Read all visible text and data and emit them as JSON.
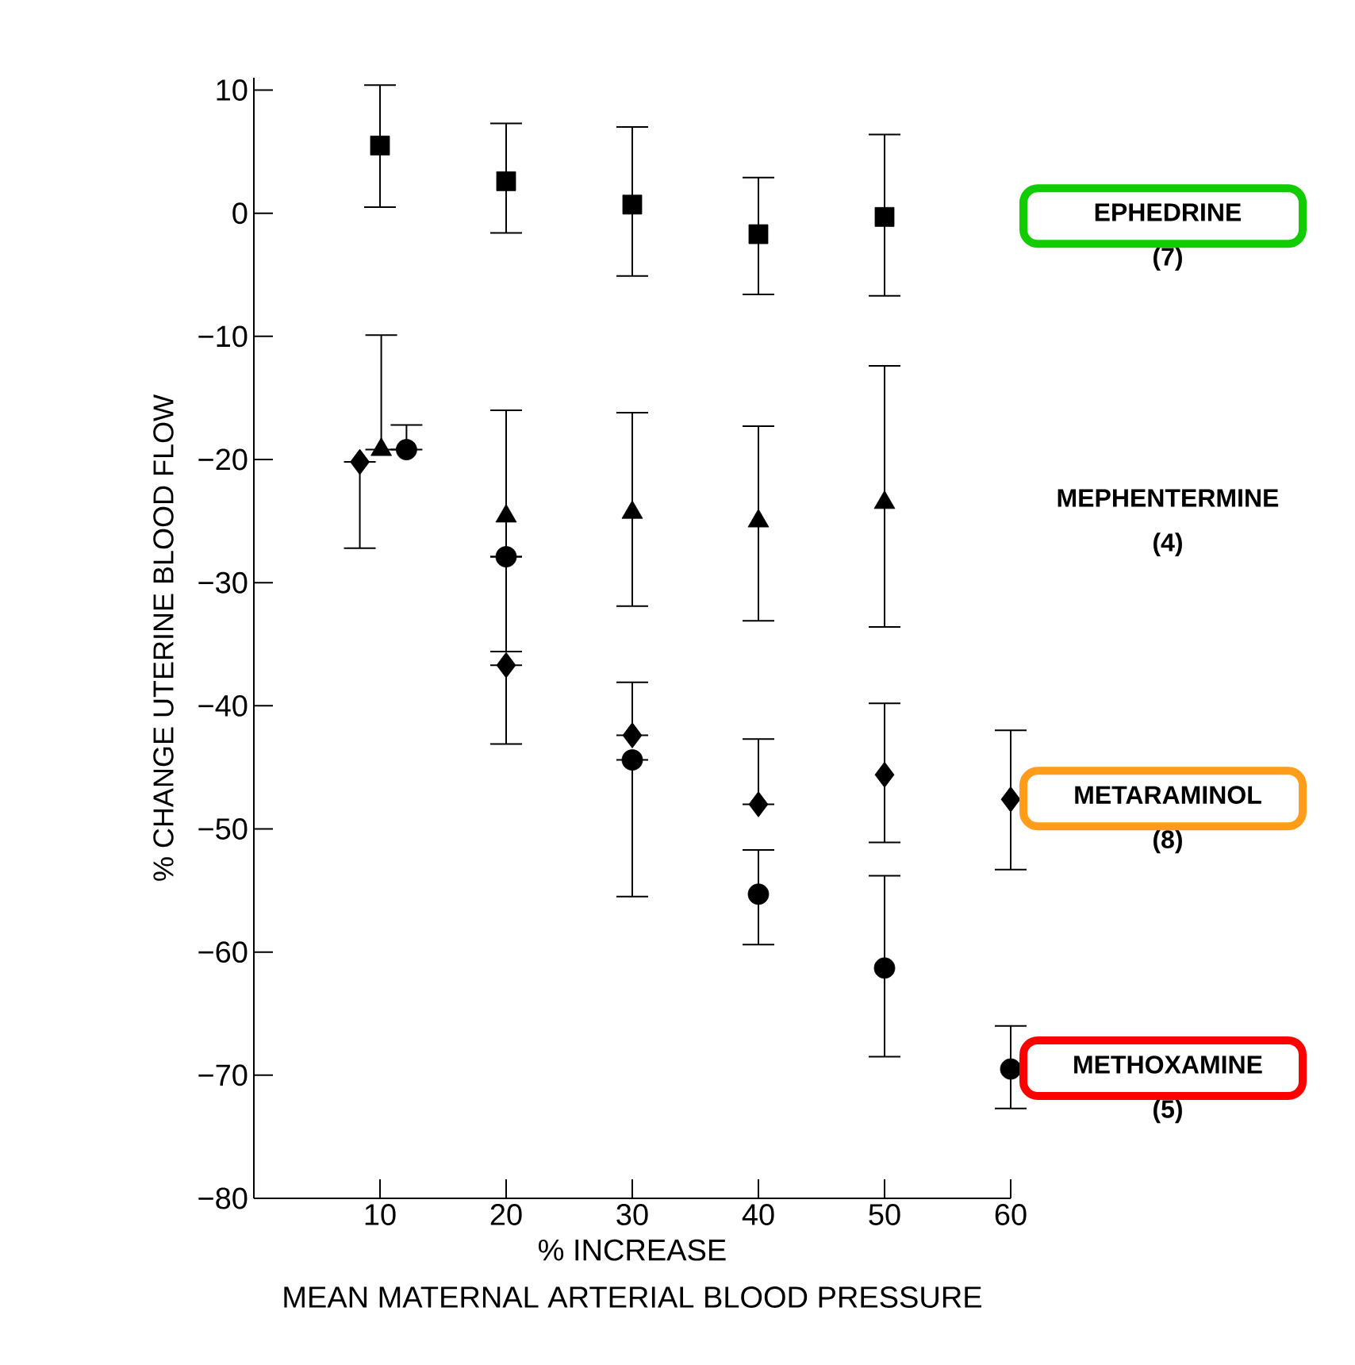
{
  "chart_data": {
    "type": "scatter",
    "xlabel": "% INCREASE",
    "ylabel": "% CHANGE UTERINE BLOOD FLOW",
    "annotations": [
      "MEAN MATERNAL ARTERIAL BLOOD PRESSURE"
    ],
    "xlim": [
      0,
      60
    ],
    "xticks": [
      10,
      20,
      30,
      40,
      50,
      60
    ],
    "ylim": [
      -80,
      11
    ],
    "yticks": [
      {
        "value": -80,
        "label": "−80"
      },
      {
        "value": -70,
        "label": "−70"
      },
      {
        "value": -60,
        "label": "−60"
      },
      {
        "value": -50,
        "label": "−50"
      },
      {
        "value": -40,
        "label": "−40"
      },
      {
        "value": -30,
        "label": "−30"
      },
      {
        "value": -20,
        "label": "−20"
      },
      {
        "value": -10,
        "label": "−10"
      },
      0,
      10
    ],
    "grid": false,
    "legend": false,
    "series": [
      {
        "name": "EPHEDRINE (7)",
        "color": "#000000",
        "marker": "square",
        "x": [
          10,
          20,
          30,
          40,
          50
        ],
        "values": [
          5.5,
          2.6,
          0.7,
          -1.7,
          -0.3
        ],
        "errors": [
          [
            0.5,
            10.4
          ],
          [
            -1.6,
            7.3
          ],
          [
            -5.1,
            7.0
          ],
          [
            -6.6,
            2.9
          ],
          [
            -6.7,
            6.4
          ]
        ]
      },
      {
        "name": "MEPHENTERMINE (4)",
        "color": "#000000",
        "marker": "triangle",
        "x": [
          10.1,
          20,
          30,
          40,
          50
        ],
        "values": [
          -19.2,
          -24.6,
          -24.3,
          -25.0,
          -23.5
        ],
        "errors": [
          [
            -19.2,
            -9.9
          ],
          [
            -35.6,
            -16.0
          ],
          [
            -31.9,
            -16.2
          ],
          [
            -33.1,
            -17.3
          ],
          [
            -33.6,
            -12.4
          ]
        ]
      },
      {
        "name": "METARAMINOL (8)",
        "color": "#000000",
        "marker": "diamond",
        "x": [
          8.4,
          20,
          30,
          40,
          50,
          60
        ],
        "values": [
          -20.2,
          -36.7,
          -42.4,
          -48.0,
          -45.6,
          -47.6
        ],
        "errors": [
          [
            -27.2,
            -20.2
          ],
          [
            -43.1,
            -36.7
          ],
          [
            -42.4,
            -38.1
          ],
          [
            -48.0,
            -42.7
          ],
          [
            -51.1,
            -39.8
          ],
          [
            -53.3,
            -42.0
          ]
        ]
      },
      {
        "name": "METHOXAMINE (5)",
        "color": "#000000",
        "marker": "circle",
        "x": [
          12.1,
          20,
          30,
          40,
          50,
          60
        ],
        "values": [
          -19.2,
          -27.9,
          -44.4,
          -55.3,
          -61.3,
          -69.5
        ],
        "errors": [
          [
            -19.2,
            -17.2
          ],
          null,
          [
            -55.5,
            -44.4
          ],
          [
            -59.4,
            -51.7
          ],
          [
            -68.5,
            -53.8
          ],
          [
            -72.7,
            -66.0
          ]
        ]
      }
    ]
  }
}
